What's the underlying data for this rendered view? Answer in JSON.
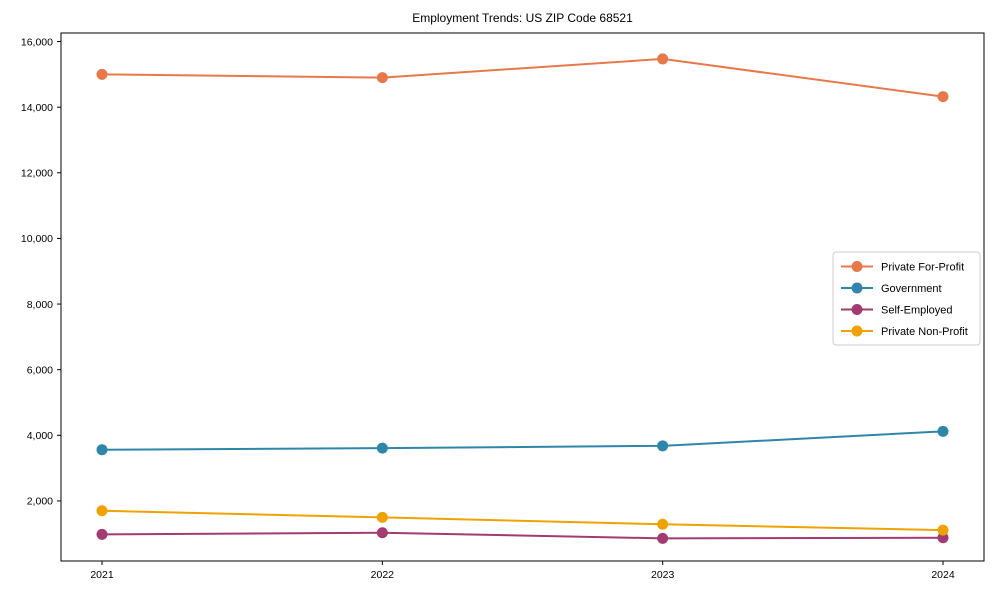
{
  "page": {
    "title": "Employment Trends: US ZIP Code 68521"
  },
  "chart_data": {
    "type": "line",
    "title": "Employment Trends: US ZIP Code 68521",
    "categories": [
      "2021",
      "2022",
      "2023",
      "2024"
    ],
    "series": [
      {
        "name": "Private For-Profit",
        "color": "#E8784A",
        "values": [
          15000,
          14900,
          15470,
          14320
        ]
      },
      {
        "name": "Government",
        "color": "#2E86AB",
        "values": [
          3560,
          3610,
          3680,
          4120
        ]
      },
      {
        "name": "Self-Employed",
        "color": "#A23B72",
        "values": [
          980,
          1030,
          860,
          880
        ]
      },
      {
        "name": "Private Non-Profit",
        "color": "#F0A202",
        "values": [
          1700,
          1500,
          1290,
          1110
        ]
      }
    ],
    "yticks": [
      {
        "value": 2000,
        "label": "2,000"
      },
      {
        "value": 4000,
        "label": "4,000"
      },
      {
        "value": 6000,
        "label": "6,000"
      },
      {
        "value": 8000,
        "label": "8,000"
      },
      {
        "value": 10000,
        "label": "10,000"
      },
      {
        "value": 12000,
        "label": "12,000"
      },
      {
        "value": 14000,
        "label": "14,000"
      },
      {
        "value": 16000,
        "label": "16,000"
      }
    ],
    "ylim": [
      170,
      16260
    ],
    "grid": false,
    "legend_position": "right-middle",
    "axis_color": "#000000",
    "legend_border_color": "#cccccc"
  }
}
